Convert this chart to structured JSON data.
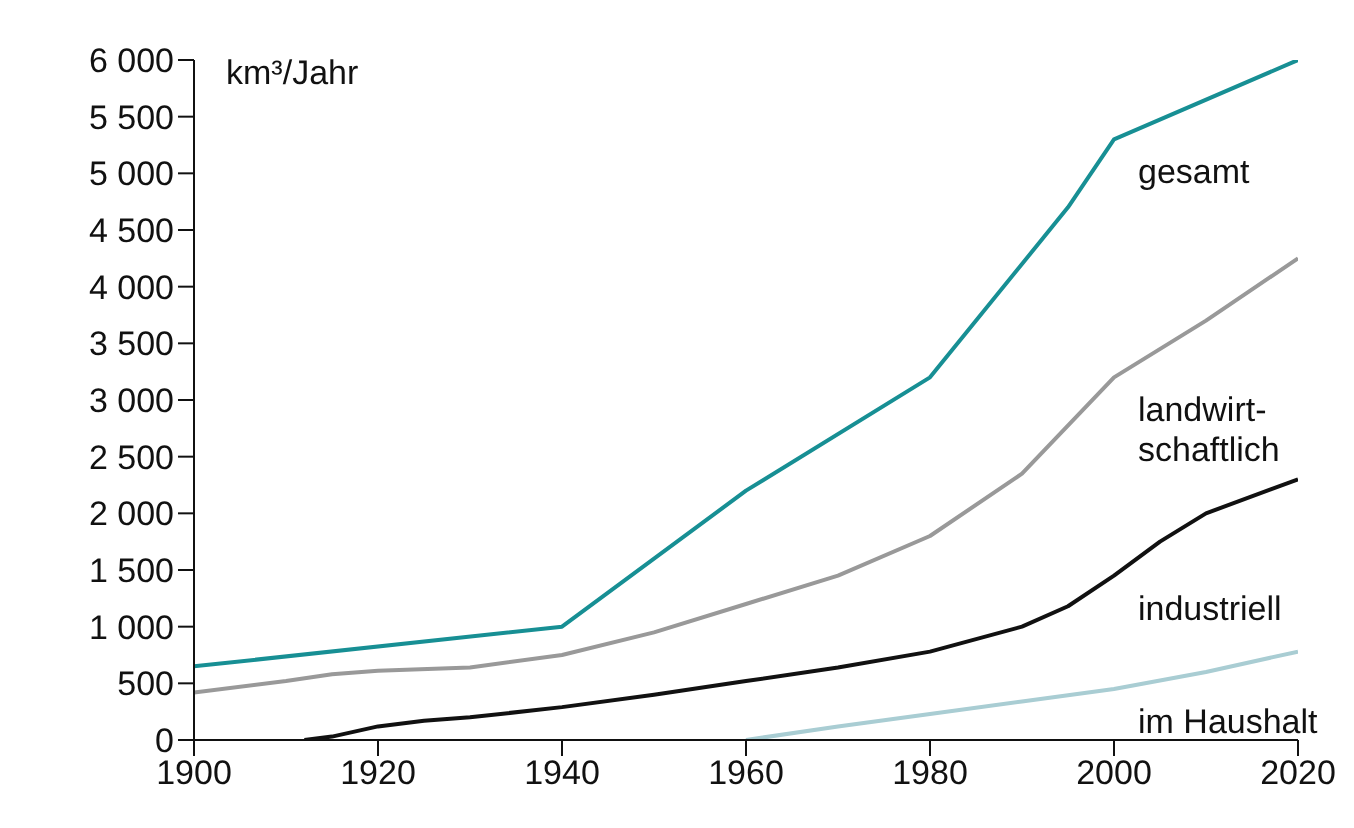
{
  "chart_data": {
    "type": "line",
    "ylabel": "km³/Jahr",
    "xlim": [
      1900,
      2020
    ],
    "xticks": [
      1900,
      1920,
      1940,
      1960,
      1980,
      2000,
      2020
    ],
    "ylim": [
      0,
      6000
    ],
    "yticks": [
      0,
      {
        "value": 500,
        "label": "500"
      },
      {
        "value": 1000,
        "label": "1 000"
      },
      {
        "value": 1500,
        "label": "1 500"
      },
      {
        "value": 2000,
        "label": "2 000"
      },
      {
        "value": 2500,
        "label": "2 500"
      },
      {
        "value": 3000,
        "label": "3 000"
      },
      {
        "value": 3500,
        "label": "3 500"
      },
      {
        "value": 4000,
        "label": "4 000"
      },
      {
        "value": 4500,
        "label": "4 500"
      },
      {
        "value": 5000,
        "label": "5 000"
      },
      {
        "value": 5500,
        "label": "5 500"
      },
      {
        "value": 6000,
        "label": "6 000"
      }
    ],
    "grid": false,
    "legend": false,
    "marker": "none",
    "line_style": "solid",
    "series": [
      {
        "name": "gesamt",
        "color": "#178f94",
        "x": [
          1900,
          1940,
          1960,
          1980,
          1995,
          2000,
          2020
        ],
        "values": [
          650,
          1000,
          2200,
          3200,
          4700,
          5300,
          6000
        ]
      },
      {
        "name": "landwirt-schaftlich",
        "color": "#999999",
        "x": [
          1900,
          1910,
          1915,
          1920,
          1930,
          1940,
          1950,
          1960,
          1970,
          1980,
          1990,
          2000,
          2010,
          2020
        ],
        "values": [
          420,
          520,
          580,
          610,
          640,
          750,
          950,
          1200,
          1450,
          1800,
          2350,
          3200,
          3700,
          4250
        ]
      },
      {
        "name": "industriell",
        "color": "#111111",
        "x": [
          1912,
          1915,
          1920,
          1925,
          1930,
          1940,
          1950,
          1960,
          1970,
          1980,
          1990,
          1995,
          2000,
          2005,
          2010,
          2020
        ],
        "values": [
          0,
          30,
          120,
          170,
          200,
          290,
          400,
          520,
          640,
          780,
          1000,
          1180,
          1450,
          1750,
          2000,
          2300
        ]
      },
      {
        "name": "im Haushalt",
        "color": "#a9cdd3",
        "x": [
          1960,
          1970,
          1980,
          1990,
          2000,
          2010,
          2020
        ],
        "values": [
          0,
          120,
          230,
          340,
          450,
          600,
          780
        ]
      }
    ]
  }
}
